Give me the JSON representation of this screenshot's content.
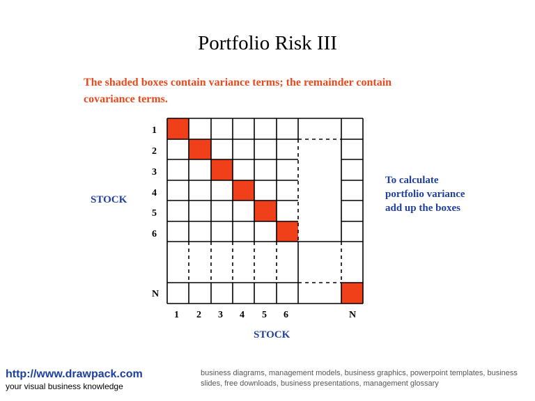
{
  "slide": {
    "title": "Portfolio Risk III",
    "subtitle_lines": [
      "The shaded boxes contain variance terms;  the  remainder contain",
      "covariance terms."
    ],
    "side_note_lines": [
      "To calculate",
      "portfolio variance",
      "add up the boxes"
    ],
    "row_axis_label": "STOCK",
    "col_axis_label": "STOCK"
  },
  "grid": {
    "row_labels": [
      "1",
      "2",
      "3",
      "4",
      "5",
      "6",
      "N"
    ],
    "col_labels": [
      "1",
      "2",
      "3",
      "4",
      "5",
      "6",
      "N"
    ],
    "variance_color": "#f0401a"
  },
  "footer": {
    "url": "http://www.drawpack.com",
    "tagline": "your visual business knowledge",
    "description": "business diagrams, management models, business graphics, powerpoint templates, business slides, free downloads, business presentations, management glossary"
  },
  "colors": {
    "accent_red": "#e8491d",
    "label_blue": "#1f3f9e",
    "link_blue": "#1a3fa0"
  }
}
